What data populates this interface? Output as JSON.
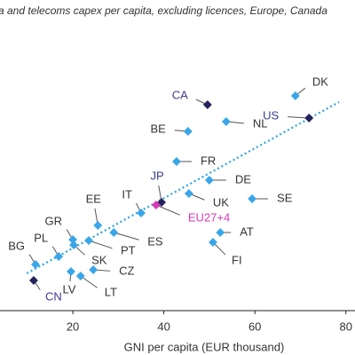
{
  "chart_data": {
    "type": "scatter",
    "title": "a and telecoms capex per capita, excluding licences, Europe, Canada",
    "x_label": "GNI per capita (EUR thousand)",
    "xlim": [
      4,
      82
    ],
    "xticks": [
      20,
      40,
      60,
      80
    ],
    "ylim": [
      0,
      350
    ],
    "points": [
      {
        "label": "CA",
        "x": 49.6,
        "y": 232,
        "color": "#23235e",
        "label_color": "#3b3b8f"
      },
      {
        "label": "DK",
        "x": 68.9,
        "y": 242,
        "color": "#3aa6e8",
        "label_color": "#333333"
      },
      {
        "label": "US",
        "x": 71.9,
        "y": 217,
        "color": "#23235e",
        "label_color": "#3b3b8f"
      },
      {
        "label": "NL",
        "x": 53.7,
        "y": 213,
        "color": "#3aa6e8",
        "label_color": "#333333"
      },
      {
        "label": "BE",
        "x": 45.3,
        "y": 202,
        "color": "#3aa6e8",
        "label_color": "#333333"
      },
      {
        "label": "FR",
        "x": 42.8,
        "y": 168,
        "color": "#3aa6e8",
        "label_color": "#333333"
      },
      {
        "label": "JP",
        "x": 39.5,
        "y": 122,
        "color": "#23235e",
        "label_color": "#3b3b8f"
      },
      {
        "label": "EU27+4",
        "x": 38.3,
        "y": 119,
        "color": "#d63ab8",
        "label_color": "#d63ab8"
      },
      {
        "label": "DE",
        "x": 50.0,
        "y": 147,
        "color": "#3aa6e8",
        "label_color": "#333333"
      },
      {
        "label": "UK",
        "x": 45.5,
        "y": 132,
        "color": "#3aa6e8",
        "label_color": "#333333"
      },
      {
        "label": "SE",
        "x": 59.4,
        "y": 126,
        "color": "#3aa6e8",
        "label_color": "#333333"
      },
      {
        "label": "IT",
        "x": 35.0,
        "y": 110,
        "color": "#3aa6e8",
        "label_color": "#333333"
      },
      {
        "label": "EE",
        "x": 25.5,
        "y": 96,
        "color": "#3aa6e8",
        "label_color": "#333333"
      },
      {
        "label": "ES",
        "x": 29.0,
        "y": 88,
        "color": "#3aa6e8",
        "label_color": "#333333"
      },
      {
        "label": "AT",
        "x": 52.4,
        "y": 88,
        "color": "#3aa6e8",
        "label_color": "#333333"
      },
      {
        "label": "GR",
        "x": 20.0,
        "y": 80,
        "color": "#3aa6e8",
        "label_color": "#333333"
      },
      {
        "label": "PL",
        "x": 16.9,
        "y": 61,
        "color": "#3aa6e8",
        "label_color": "#333333"
      },
      {
        "label": "SK",
        "x": 20.2,
        "y": 74,
        "color": "#3aa6e8",
        "label_color": "#333333"
      },
      {
        "label": "PT",
        "x": 23.5,
        "y": 79,
        "color": "#3aa6e8",
        "label_color": "#333333"
      },
      {
        "label": "FI",
        "x": 50.8,
        "y": 77,
        "color": "#3aa6e8",
        "label_color": "#333333"
      },
      {
        "label": "BG",
        "x": 11.8,
        "y": 52,
        "color": "#3aa6e8",
        "label_color": "#333333"
      },
      {
        "label": "CZ",
        "x": 24.5,
        "y": 46,
        "color": "#3aa6e8",
        "label_color": "#333333"
      },
      {
        "label": "LV",
        "x": 19.6,
        "y": 44,
        "color": "#3aa6e8",
        "label_color": "#333333"
      },
      {
        "label": "LT",
        "x": 21.7,
        "y": 39,
        "color": "#3aa6e8",
        "label_color": "#333333"
      },
      {
        "label": "CN",
        "x": 11.4,
        "y": 34,
        "color": "#23235e",
        "label_color": "#3b3b8f"
      }
    ],
    "trendline": {
      "x": [
        9.9,
        78.5
      ],
      "y": [
        42,
        235
      ],
      "color": "#2ea3e6"
    }
  }
}
